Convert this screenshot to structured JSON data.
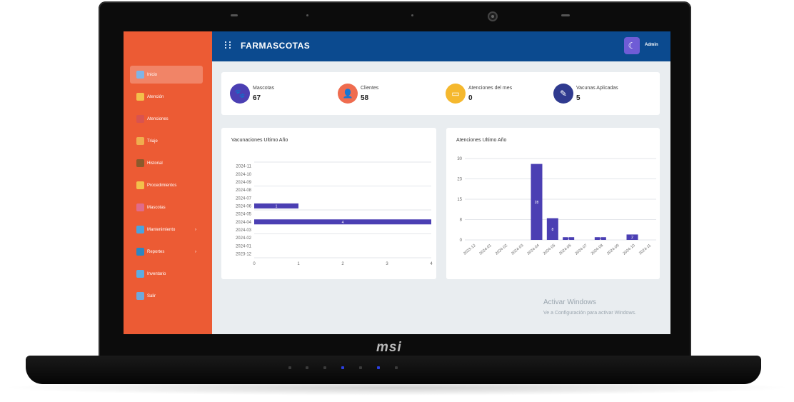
{
  "device": {
    "brand": "msi"
  },
  "app": {
    "title": "FARMASCOTAS",
    "logo": "",
    "user": "Admin"
  },
  "sidebar": {
    "items": [
      {
        "label": "Inicio",
        "color": "#7fb4e6",
        "active": true
      },
      {
        "label": "Atención",
        "color": "#f3c04b"
      },
      {
        "label": "Atenciones",
        "color": "#d9534f"
      },
      {
        "label": "Triaje",
        "color": "#f0ad4e"
      },
      {
        "label": "Historial",
        "color": "#8b5a2b"
      },
      {
        "label": "Procedimientos",
        "color": "#f3c04b"
      },
      {
        "label": "Mascotas",
        "color": "#e06b8b"
      },
      {
        "label": "Mantenimiento",
        "color": "#4aa3df",
        "chevron": "›"
      },
      {
        "label": "Reportes",
        "color": "#2e86c1",
        "chevron": "›"
      },
      {
        "label": "Inventario",
        "color": "#5dade2"
      },
      {
        "label": "Salir",
        "color": "#6fa8dc"
      }
    ]
  },
  "stats": [
    {
      "label": "Mascotas",
      "value": "67",
      "icon": "paw-icon",
      "color": "#4b3fb3"
    },
    {
      "label": "Clientes",
      "value": "58",
      "icon": "user-icon",
      "color": "#ef6c4f"
    },
    {
      "label": "Atenciones del mes",
      "value": "0",
      "icon": "calendar-icon",
      "color": "#f5b82e"
    },
    {
      "label": "Vacunas Aplicadas",
      "value": "5",
      "icon": "syringe-icon",
      "color": "#2f3a8f"
    }
  ],
  "chart_data": [
    {
      "type": "bar",
      "orientation": "horizontal",
      "title": "Vacunaciones Ultimo Año",
      "categories": [
        "2024-11",
        "2024-10",
        "2024-09",
        "2024-08",
        "2024-07",
        "2024-06",
        "2024-05",
        "2024-04",
        "2024-03",
        "2024-02",
        "2024-01",
        "2023-12"
      ],
      "values": [
        0,
        0,
        0,
        0,
        0,
        1,
        0,
        4,
        0,
        0,
        0,
        0
      ],
      "xlim": [
        0,
        4
      ],
      "xticks": [
        "0",
        "1",
        "2",
        "3",
        "4"
      ],
      "color": "#4b3fb3",
      "grid": true
    },
    {
      "type": "bar",
      "title": "Atenciones Ultimo Año",
      "categories": [
        "2023-12",
        "2024-01",
        "2024-02",
        "2024-03",
        "2024-04",
        "2024-05",
        "2024-06",
        "2024-07",
        "2024-08",
        "2024-09",
        "2024-10",
        "2024-11"
      ],
      "values": [
        0,
        0,
        0,
        0,
        28,
        8,
        1,
        0,
        1,
        0,
        2,
        0
      ],
      "ylim": [
        0,
        30
      ],
      "yticks": [
        "0",
        "8",
        "15",
        "23",
        "30"
      ],
      "color": "#4b3fb3",
      "grid": true
    }
  ],
  "watermark": {
    "line1": "Activar Windows",
    "line2": "Ve a Configuración para activar Windows."
  }
}
